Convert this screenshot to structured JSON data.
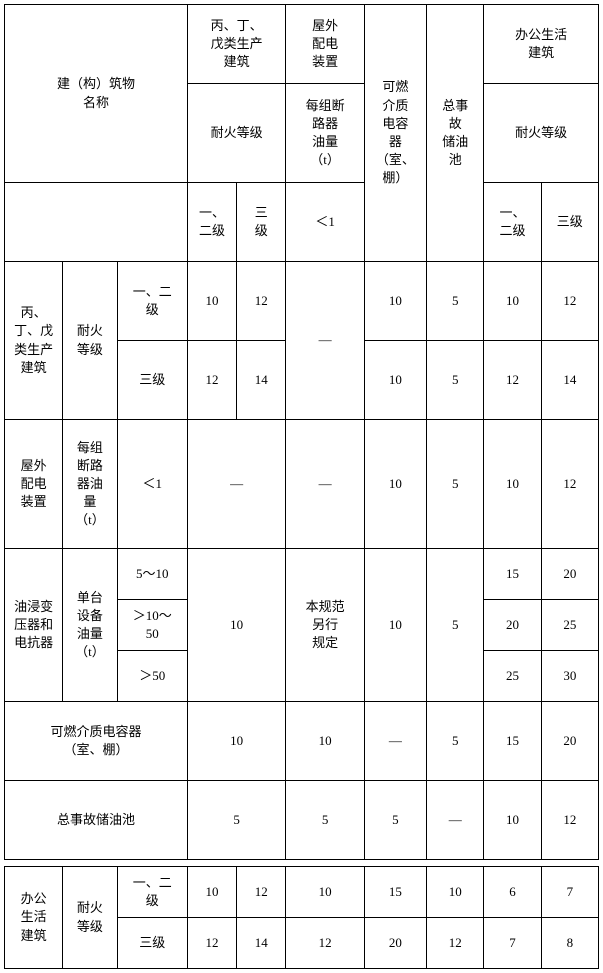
{
  "header": {
    "building_name": "建（构）筑物\n名称",
    "col1_top": "丙、丁、\n戊类生产\n建筑",
    "col1_mid": "耐火等级",
    "col1_sub_a": "一、\n二级",
    "col1_sub_b": "三\n级",
    "col2_top": "屋外\n配电\n装置",
    "col2_mid": "每组断\n路器\n油量\n（t）",
    "col2_sub": "＜1",
    "col3": "可燃\n介质\n电容\n器\n（室、\n棚）",
    "col4": "总事\n故\n储油\n池",
    "col5_top": "办公生活\n建筑",
    "col5_mid": "耐火等级",
    "col5_sub_a": "一、\n二级",
    "col5_sub_b": "三级"
  },
  "rows": {
    "r1": {
      "g": "丙、\n丁、戊\n类生产\n建筑",
      "sg": "耐火\n等级",
      "a_lbl": "一、二\n级",
      "a": [
        "10",
        "12",
        "10",
        "5",
        "10",
        "12"
      ],
      "dash": "—",
      "b_lbl": "三级",
      "b": [
        "12",
        "14",
        "10",
        "5",
        "12",
        "14"
      ]
    },
    "r2": {
      "g": "屋外\n配电\n装置",
      "sg": "每组\n断路\n器油\n量\n（t）",
      "lbl": "＜1",
      "v": [
        "—",
        "—",
        "10",
        "5",
        "10",
        "12"
      ]
    },
    "r3": {
      "g": "油浸变\n压器和\n电抗器",
      "sg": "单台\n设备\n油量\n（t）",
      "a_lbl": "5～10",
      "b_lbl": "＞10～\n50",
      "c_lbl": "＞50",
      "col1": "10",
      "col2": "本规范\n另行\n规定",
      "col3": "10",
      "col4": "5",
      "a": [
        "15",
        "20"
      ],
      "b": [
        "20",
        "25"
      ],
      "c": [
        "25",
        "30"
      ]
    },
    "r4": {
      "g": "可燃介质电容器\n（室、棚）",
      "v": [
        "10",
        "10",
        "—",
        "5",
        "15",
        "20"
      ]
    },
    "r5": {
      "g": "总事故储油池",
      "v": [
        "5",
        "5",
        "5",
        "—",
        "10",
        "12"
      ]
    },
    "r6": {
      "g": "办公\n生活\n建筑",
      "sg": "耐火\n等级",
      "a_lbl": "一、二\n级",
      "a": [
        "10",
        "12",
        "10",
        "15",
        "10",
        "6",
        "7"
      ],
      "b_lbl": "三级",
      "b": [
        "12",
        "14",
        "12",
        "20",
        "12",
        "7",
        "8"
      ]
    }
  }
}
